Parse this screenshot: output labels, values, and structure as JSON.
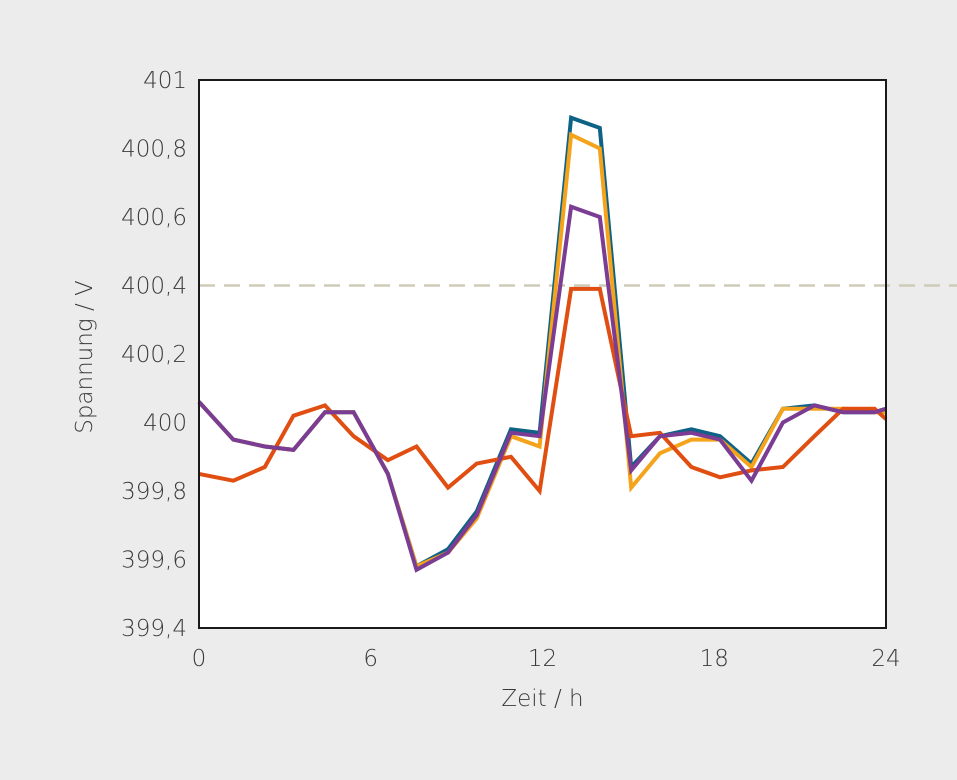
{
  "chart_data": {
    "type": "line",
    "xlabel": "Zeit / h",
    "ylabel": "Spannung / V",
    "xlim": [
      0,
      24
    ],
    "ylim": [
      399.4,
      401
    ],
    "x_ticks": [
      0,
      6,
      12,
      18,
      24
    ],
    "x_tick_labels": [
      "0",
      "6",
      "12",
      "18",
      "24"
    ],
    "y_ticks": [
      399.4,
      399.6,
      399.8,
      400,
      400.2,
      400.4,
      400.6,
      400.8,
      401
    ],
    "y_tick_labels": [
      "399,4",
      "399,6",
      "399,8",
      "400",
      "400,2",
      "400,4",
      "400,6",
      "400,8",
      "401"
    ],
    "grid": false,
    "reference_line": {
      "y": 400.4,
      "style": "dashed",
      "color": "#cfcbb8"
    },
    "x": [
      0,
      1.2,
      2.3,
      3.3,
      4.4,
      5.4,
      6.6,
      7.6,
      8.7,
      9.7,
      10.9,
      11.9,
      13.0,
      14.0,
      15.1,
      16.1,
      17.2,
      18.2,
      19.3,
      20.4,
      21.5,
      22.5,
      23.6,
      24.0
    ],
    "series": [
      {
        "color": "#0d6286",
        "values": [
          400.06,
          399.95,
          399.93,
          399.92,
          400.03,
          400.03,
          399.85,
          399.58,
          399.63,
          399.74,
          399.98,
          399.97,
          400.89,
          400.86,
          399.87,
          399.96,
          399.98,
          399.96,
          399.88,
          400.04,
          400.05,
          400.03,
          400.03,
          400.04
        ]
      },
      {
        "color": "#f4a31b",
        "values": [
          400.06,
          399.95,
          399.93,
          399.92,
          400.03,
          400.03,
          399.85,
          399.58,
          399.62,
          399.72,
          399.96,
          399.93,
          400.84,
          400.8,
          399.81,
          399.91,
          399.95,
          399.95,
          399.87,
          400.04,
          400.04,
          400.04,
          400.03,
          400.03
        ]
      },
      {
        "color": "#e04e12",
        "values": [
          399.85,
          399.83,
          399.87,
          400.02,
          400.05,
          399.96,
          399.89,
          399.93,
          399.81,
          399.88,
          399.9,
          399.8,
          400.39,
          400.39,
          399.96,
          399.97,
          399.87,
          399.84,
          399.86,
          399.87,
          399.96,
          400.04,
          400.04,
          400.01
        ]
      },
      {
        "color": "#7b3c93",
        "values": [
          400.06,
          399.95,
          399.93,
          399.92,
          400.03,
          400.03,
          399.85,
          399.57,
          399.62,
          399.73,
          399.97,
          399.96,
          400.63,
          400.6,
          399.86,
          399.96,
          399.97,
          399.95,
          399.83,
          400.0,
          400.05,
          400.03,
          400.03,
          400.04
        ]
      }
    ]
  }
}
